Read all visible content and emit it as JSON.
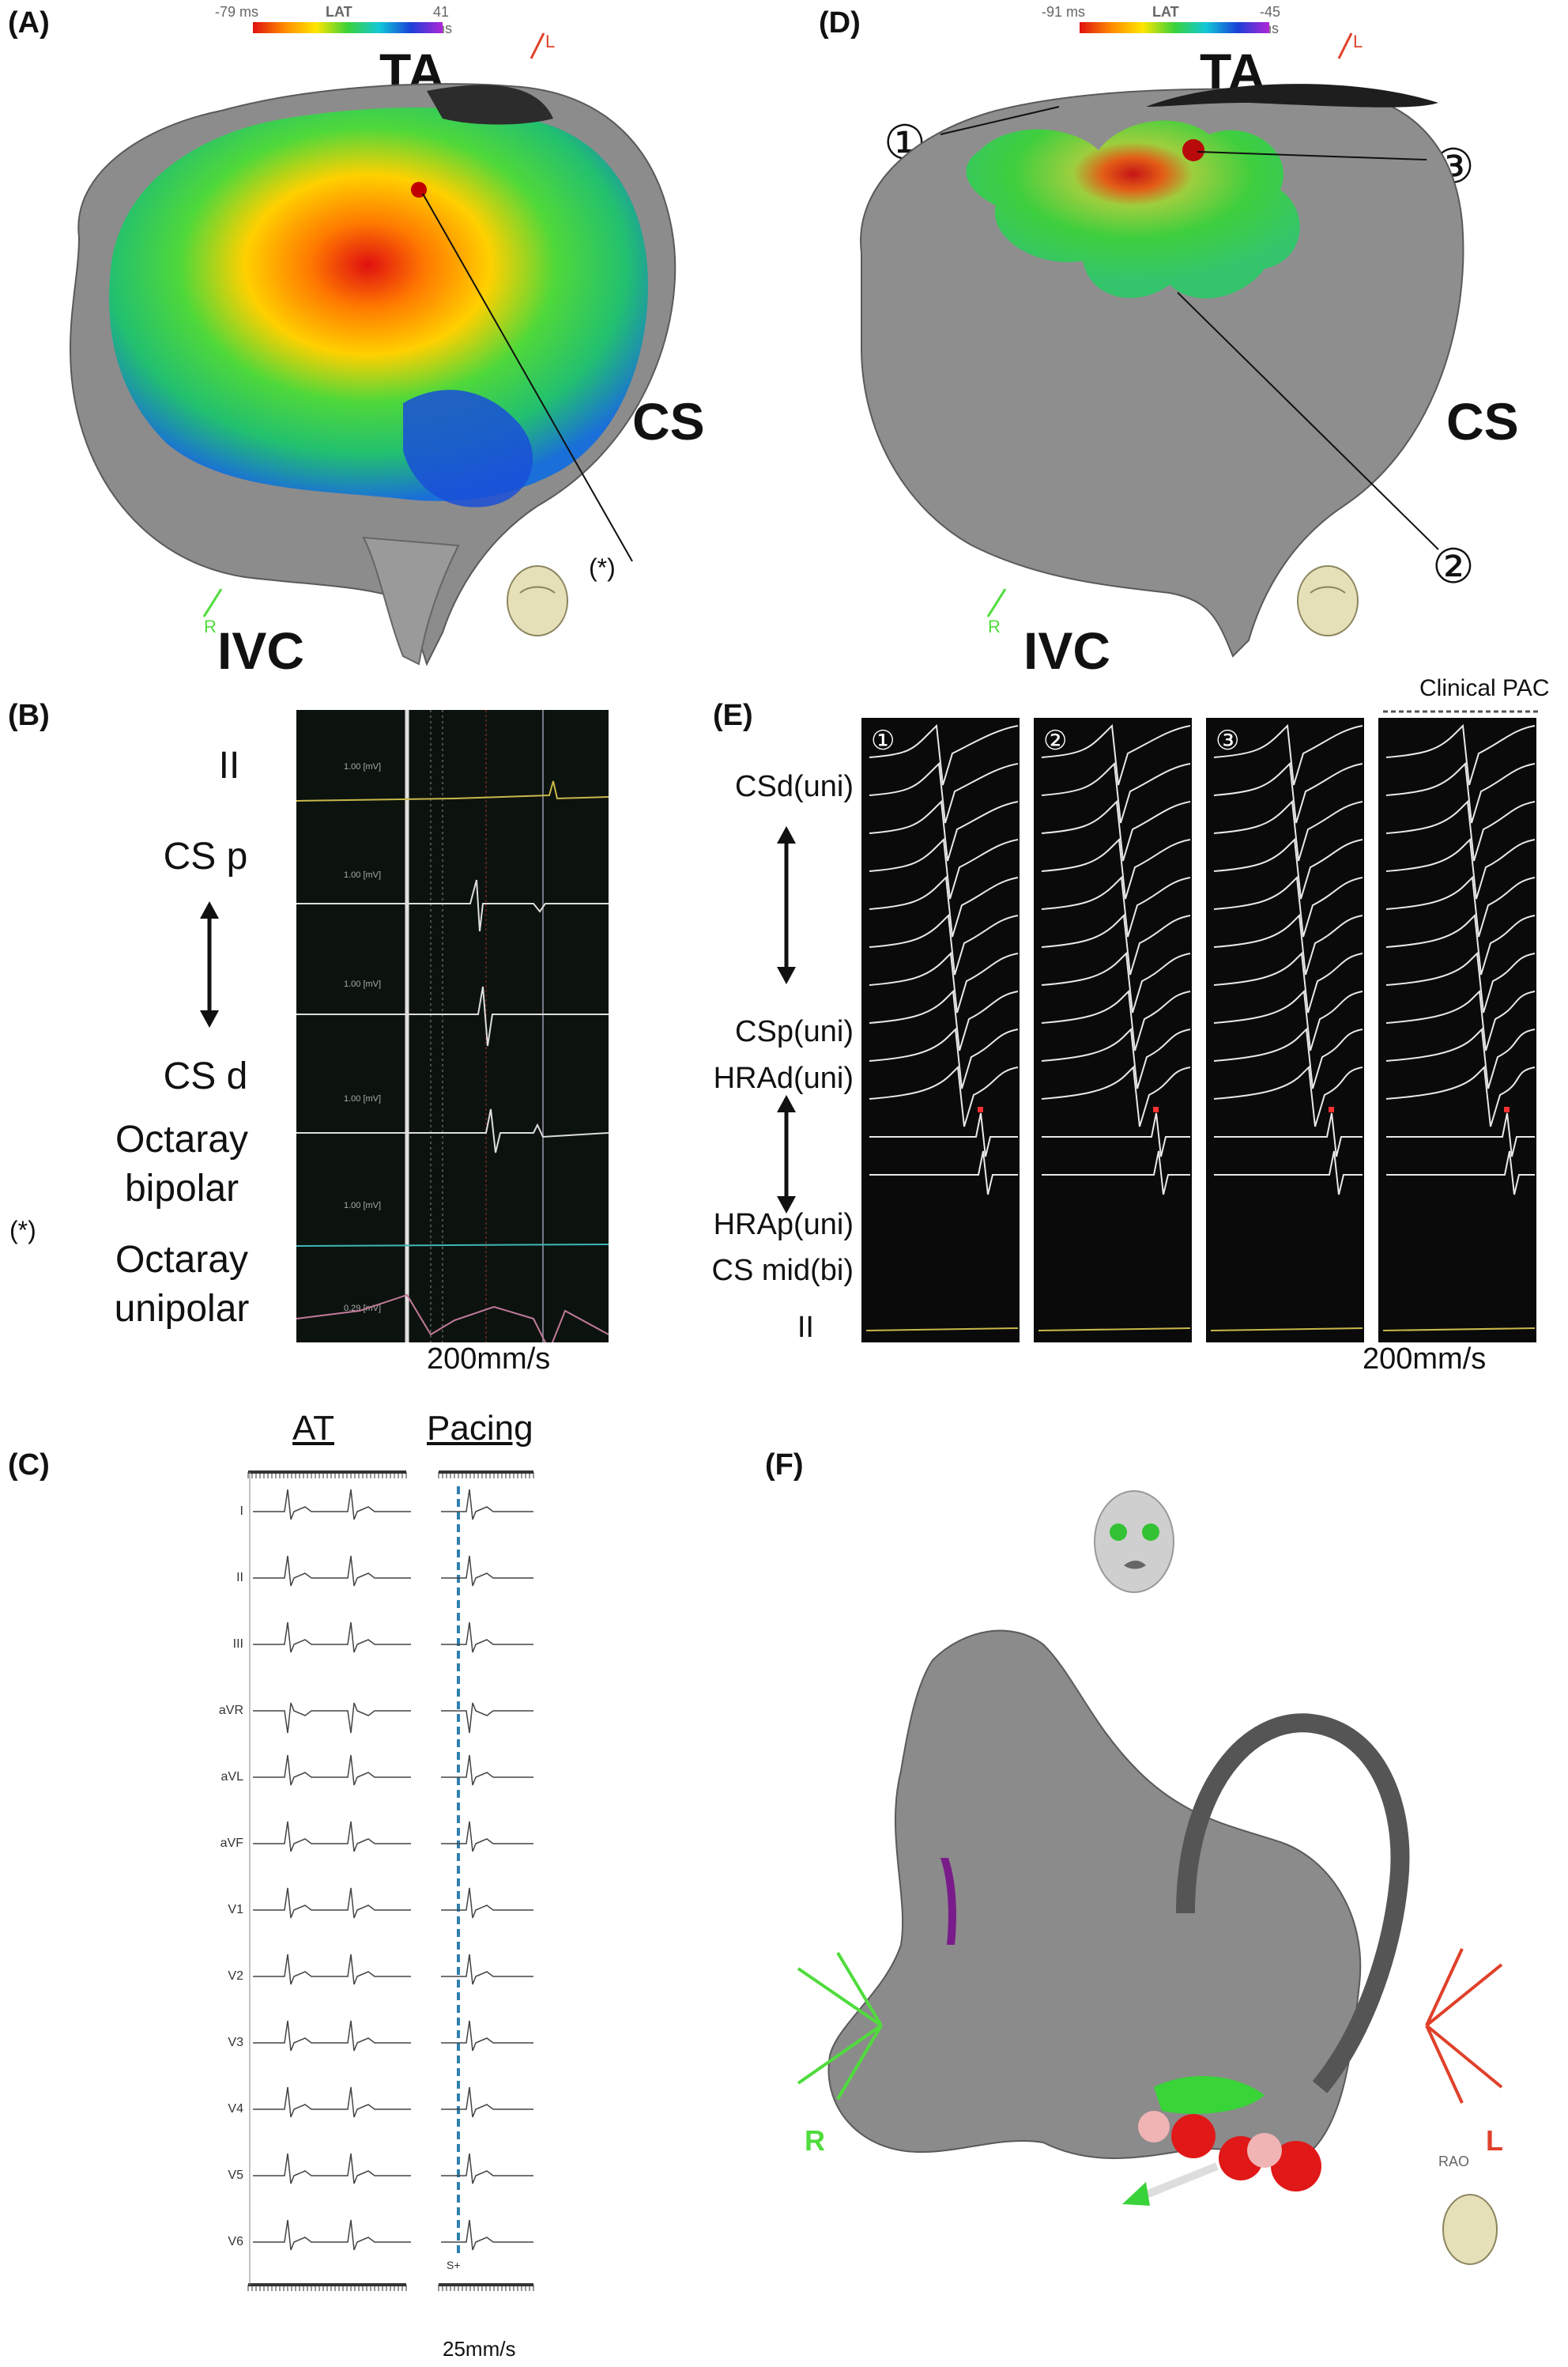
{
  "panels": {
    "A": {
      "label": "(A)",
      "scale_min": "-79 ms",
      "scale_title": "LAT",
      "scale_max": "41 ms",
      "landmarks": {
        "ta": "TA",
        "cs": "CS",
        "ivc": "IVC"
      },
      "axis_l": "L",
      "axis_r": "R",
      "marker": "(*)"
    },
    "B": {
      "label": "(B)",
      "rows": [
        "II",
        "CS p",
        "CS d",
        "Octaray bipolar",
        "Octaray unipolar"
      ],
      "rows_octaray_1": "Octaray",
      "rows_octaray_bip": "bipolar",
      "rows_octaray_2": "Octaray",
      "rows_octaray_uni": "unipolar",
      "marker": "(*)",
      "speed": "200mm/s",
      "channel_scales": [
        "1.00 [mV]",
        "1.00 [mV]",
        "1.00 [mV]",
        "1.00 [mV]",
        "1.00 [mV]",
        "0.29 [mV]"
      ]
    },
    "C": {
      "label": "(C)",
      "header_at": "AT",
      "header_pacing": "Pacing",
      "leads": [
        "I",
        "II",
        "III",
        "aVR",
        "aVL",
        "aVF",
        "V1",
        "V2",
        "V3",
        "V4",
        "V5",
        "V6"
      ],
      "stim_label": "S+",
      "speed": "25mm/s"
    },
    "D": {
      "label": "(D)",
      "scale_min": "-91 ms",
      "scale_title": "LAT",
      "scale_max": "-45 ms",
      "landmarks": {
        "ta": "TA",
        "cs": "CS",
        "ivc": "IVC"
      },
      "axis_l": "L",
      "axis_r": "R",
      "sites": [
        "①",
        "②",
        "③"
      ]
    },
    "E": {
      "label": "(E)",
      "clinical": "Clinical PAC",
      "sites": [
        "①",
        "②",
        "③"
      ],
      "row_labels": [
        "CSd(uni)",
        "CSp(uni)",
        "HRAd(uni)",
        "HRAp(uni)",
        "CS mid(bi)",
        "II"
      ],
      "speed": "200mm/s"
    },
    "F": {
      "label": "(F)",
      "axis_r": "R",
      "axis_l": "L",
      "view": "RAO"
    }
  },
  "colors": {
    "ecg_bg": "#0b0b0b",
    "trace_white": "#e8e8e8",
    "trace_yellow": "#c8b84a",
    "trace_cyan": "#3fb6b6",
    "trace_pink": "#c27a9a",
    "pacing_line": "#2f7fb0",
    "axis_green": "#4fdc3c",
    "axis_red": "#e0402a",
    "map_red": "#d41a1a",
    "map_green": "#3ad23a",
    "map_blue": "#1a3fd8"
  }
}
